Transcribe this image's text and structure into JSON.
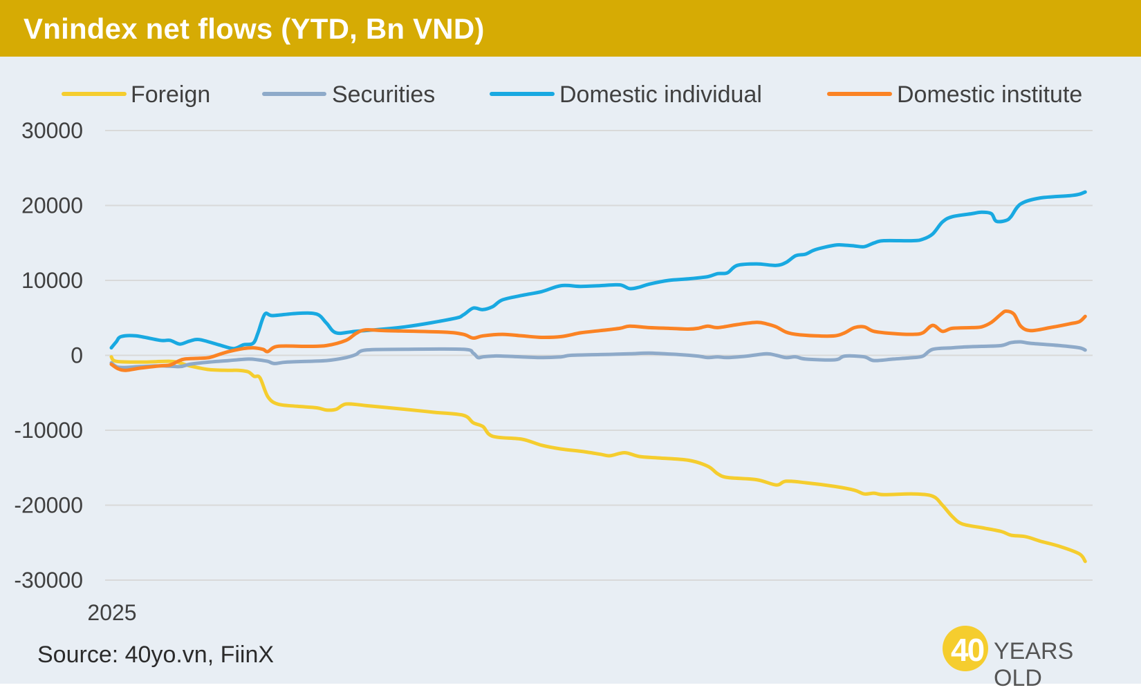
{
  "title": "Vnindex net flows (YTD, Bn VND)",
  "source": "Source: 40yo.vn, FiinX",
  "logo": {
    "number": "40",
    "text": "YEARS OLD"
  },
  "chart_data": {
    "type": "line",
    "title": "Vnindex net flows (YTD, Bn VND)",
    "xlabel": "",
    "ylabel": "",
    "x_tick_label": "2025",
    "ylim": [
      -30000,
      30000
    ],
    "yticks": [
      30000,
      20000,
      10000,
      0,
      -10000,
      -20000,
      -30000
    ],
    "yticks_labels": [
      "30000",
      "20000",
      "10000",
      "0",
      "-10000",
      "-20000",
      "-30000"
    ],
    "xlim": [
      0,
      100
    ],
    "grid": true,
    "legend_position": "top",
    "series": [
      {
        "name": "Foreign",
        "color": "#f5cd2e",
        "points": [
          [
            0,
            -200
          ],
          [
            0.5,
            -800
          ],
          [
            3,
            -900
          ],
          [
            6,
            -800
          ],
          [
            7,
            -1000
          ],
          [
            8,
            -1400
          ],
          [
            10,
            -1900
          ],
          [
            12,
            -2000
          ],
          [
            13,
            -2000
          ],
          [
            14,
            -2200
          ],
          [
            14.6,
            -2800
          ],
          [
            15.2,
            -3000
          ],
          [
            16,
            -5500
          ],
          [
            17,
            -6500
          ],
          [
            19,
            -6800
          ],
          [
            21,
            -7000
          ],
          [
            22,
            -7300
          ],
          [
            23,
            -7200
          ],
          [
            24,
            -6500
          ],
          [
            26,
            -6700
          ],
          [
            30,
            -7200
          ],
          [
            33,
            -7600
          ],
          [
            36,
            -8000
          ],
          [
            37,
            -9000
          ],
          [
            38,
            -9500
          ],
          [
            39,
            -10800
          ],
          [
            42,
            -11200
          ],
          [
            44,
            -12000
          ],
          [
            46,
            -12500
          ],
          [
            48,
            -12800
          ],
          [
            50,
            -13200
          ],
          [
            51,
            -13400
          ],
          [
            52.5,
            -13000
          ],
          [
            54,
            -13500
          ],
          [
            56,
            -13700
          ],
          [
            59,
            -14000
          ],
          [
            61,
            -14800
          ],
          [
            62,
            -15800
          ],
          [
            63,
            -16300
          ],
          [
            66,
            -16600
          ],
          [
            68,
            -17300
          ],
          [
            69,
            -16800
          ],
          [
            71,
            -17000
          ],
          [
            74,
            -17500
          ],
          [
            76,
            -18000
          ],
          [
            77,
            -18500
          ],
          [
            78,
            -18400
          ],
          [
            79,
            -18600
          ],
          [
            82,
            -18500
          ],
          [
            84,
            -18800
          ],
          [
            85,
            -20000
          ],
          [
            86,
            -21500
          ],
          [
            87,
            -22500
          ],
          [
            89,
            -23000
          ],
          [
            91,
            -23500
          ],
          [
            92,
            -24000
          ],
          [
            93.5,
            -24200
          ],
          [
            95,
            -24800
          ],
          [
            97,
            -25500
          ],
          [
            99,
            -26500
          ],
          [
            99.6,
            -27500
          ]
        ]
      },
      {
        "name": "Securities",
        "color": "#8eaac9",
        "points": [
          [
            0,
            -1000
          ],
          [
            0.8,
            -1600
          ],
          [
            3,
            -1500
          ],
          [
            5,
            -1400
          ],
          [
            7,
            -1500
          ],
          [
            8,
            -1200
          ],
          [
            10,
            -900
          ],
          [
            12,
            -700
          ],
          [
            14,
            -500
          ],
          [
            15,
            -600
          ],
          [
            16,
            -800
          ],
          [
            16.7,
            -1100
          ],
          [
            18,
            -900
          ],
          [
            22,
            -700
          ],
          [
            24,
            -300
          ],
          [
            25,
            100
          ],
          [
            26,
            700
          ],
          [
            30,
            800
          ],
          [
            36,
            800
          ],
          [
            37,
            300
          ],
          [
            37.5,
            -300
          ],
          [
            38,
            -200
          ],
          [
            39,
            -100
          ],
          [
            40,
            -100
          ],
          [
            44,
            -300
          ],
          [
            46,
            -200
          ],
          [
            47,
            0
          ],
          [
            50,
            100
          ],
          [
            53,
            200
          ],
          [
            55,
            300
          ],
          [
            58,
            100
          ],
          [
            60,
            -100
          ],
          [
            61,
            -300
          ],
          [
            62,
            -200
          ],
          [
            63,
            -300
          ],
          [
            65,
            -100
          ],
          [
            67,
            200
          ],
          [
            68,
            0
          ],
          [
            69,
            -300
          ],
          [
            70,
            -200
          ],
          [
            71,
            -500
          ],
          [
            74,
            -600
          ],
          [
            75,
            -100
          ],
          [
            77,
            -200
          ],
          [
            78,
            -700
          ],
          [
            80,
            -500
          ],
          [
            82,
            -300
          ],
          [
            83,
            -100
          ],
          [
            84,
            800
          ],
          [
            86,
            1000
          ],
          [
            87,
            1100
          ],
          [
            89,
            1200
          ],
          [
            91,
            1300
          ],
          [
            92,
            1700
          ],
          [
            93,
            1800
          ],
          [
            94,
            1600
          ],
          [
            97,
            1300
          ],
          [
            99,
            1000
          ],
          [
            99.6,
            700
          ]
        ]
      },
      {
        "name": "Domestic individual",
        "color": "#19a9e1",
        "points": [
          [
            0,
            1000
          ],
          [
            0.5,
            1800
          ],
          [
            1,
            2500
          ],
          [
            2.5,
            2600
          ],
          [
            5,
            2000
          ],
          [
            6,
            2000
          ],
          [
            7,
            1500
          ],
          [
            8,
            1900
          ],
          [
            9,
            2100
          ],
          [
            11,
            1400
          ],
          [
            12.5,
            900
          ],
          [
            13.5,
            1400
          ],
          [
            14.5,
            1600
          ],
          [
            15,
            3000
          ],
          [
            15.7,
            5500
          ],
          [
            16.5,
            5300
          ],
          [
            19,
            5600
          ],
          [
            21,
            5500
          ],
          [
            22,
            4300
          ],
          [
            23,
            3000
          ],
          [
            25,
            3200
          ],
          [
            30,
            3800
          ],
          [
            35,
            4900
          ],
          [
            36,
            5400
          ],
          [
            37,
            6300
          ],
          [
            38,
            6100
          ],
          [
            39,
            6500
          ],
          [
            40,
            7400
          ],
          [
            42,
            8000
          ],
          [
            44,
            8500
          ],
          [
            46,
            9300
          ],
          [
            48,
            9200
          ],
          [
            50,
            9300
          ],
          [
            52,
            9400
          ],
          [
            53,
            8900
          ],
          [
            54,
            9100
          ],
          [
            55,
            9500
          ],
          [
            57,
            10000
          ],
          [
            59,
            10200
          ],
          [
            61,
            10500
          ],
          [
            62,
            10900
          ],
          [
            63,
            11000
          ],
          [
            64,
            12000
          ],
          [
            66,
            12200
          ],
          [
            68,
            12000
          ],
          [
            69,
            12400
          ],
          [
            70,
            13300
          ],
          [
            71,
            13500
          ],
          [
            72,
            14100
          ],
          [
            74,
            14700
          ],
          [
            75,
            14700
          ],
          [
            76,
            14600
          ],
          [
            77,
            14500
          ],
          [
            78,
            15000
          ],
          [
            79,
            15300
          ],
          [
            82,
            15300
          ],
          [
            83,
            15500
          ],
          [
            84,
            16200
          ],
          [
            85,
            17800
          ],
          [
            86,
            18500
          ],
          [
            88,
            18900
          ],
          [
            89,
            19100
          ],
          [
            90,
            18900
          ],
          [
            90.5,
            17900
          ],
          [
            91.5,
            18000
          ],
          [
            92,
            18500
          ],
          [
            93,
            20200
          ],
          [
            95,
            21000
          ],
          [
            98,
            21300
          ],
          [
            99,
            21500
          ],
          [
            99.6,
            21800
          ]
        ]
      },
      {
        "name": "Domestic institute",
        "color": "#fb8324",
        "points": [
          [
            0,
            -1200
          ],
          [
            0.7,
            -1800
          ],
          [
            1.5,
            -2000
          ],
          [
            3,
            -1700
          ],
          [
            5,
            -1400
          ],
          [
            6,
            -1300
          ],
          [
            6.8,
            -800
          ],
          [
            7.5,
            -500
          ],
          [
            9,
            -400
          ],
          [
            10,
            -300
          ],
          [
            11,
            100
          ],
          [
            12,
            500
          ],
          [
            13.5,
            900
          ],
          [
            14.5,
            1000
          ],
          [
            15.5,
            800
          ],
          [
            16,
            500
          ],
          [
            17,
            1200
          ],
          [
            20,
            1200
          ],
          [
            22,
            1300
          ],
          [
            24,
            2000
          ],
          [
            25,
            2900
          ],
          [
            26,
            3400
          ],
          [
            28,
            3300
          ],
          [
            34,
            3100
          ],
          [
            36,
            2800
          ],
          [
            37,
            2300
          ],
          [
            38,
            2600
          ],
          [
            40,
            2800
          ],
          [
            42,
            2600
          ],
          [
            44,
            2400
          ],
          [
            46,
            2500
          ],
          [
            48,
            3000
          ],
          [
            50,
            3300
          ],
          [
            52,
            3600
          ],
          [
            53,
            3900
          ],
          [
            55,
            3700
          ],
          [
            57,
            3600
          ],
          [
            59,
            3500
          ],
          [
            60,
            3600
          ],
          [
            61,
            3900
          ],
          [
            62,
            3700
          ],
          [
            64,
            4100
          ],
          [
            66,
            4400
          ],
          [
            67,
            4200
          ],
          [
            68,
            3800
          ],
          [
            69,
            3100
          ],
          [
            70,
            2800
          ],
          [
            72,
            2600
          ],
          [
            74,
            2600
          ],
          [
            75,
            3000
          ],
          [
            76,
            3700
          ],
          [
            77,
            3800
          ],
          [
            78,
            3200
          ],
          [
            80,
            2900
          ],
          [
            82,
            2800
          ],
          [
            83,
            3000
          ],
          [
            84,
            4000
          ],
          [
            85,
            3200
          ],
          [
            86,
            3600
          ],
          [
            88,
            3700
          ],
          [
            89,
            3800
          ],
          [
            90,
            4400
          ],
          [
            91,
            5500
          ],
          [
            91.5,
            5900
          ],
          [
            92.3,
            5500
          ],
          [
            93,
            3900
          ],
          [
            94,
            3300
          ],
          [
            96,
            3700
          ],
          [
            98,
            4200
          ],
          [
            99,
            4500
          ],
          [
            99.6,
            5200
          ]
        ]
      }
    ]
  }
}
